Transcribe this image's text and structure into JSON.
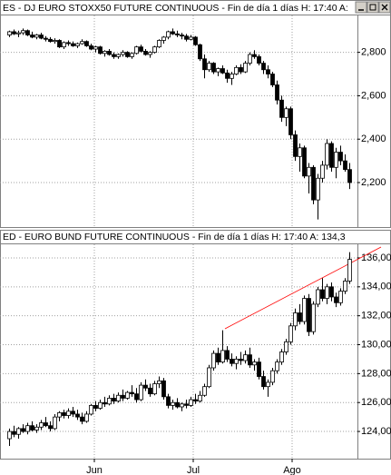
{
  "chart_data": [
    {
      "type": "candlestick",
      "title": "ES - DJ EURO STOXX50 FUTURE CONTINUOUS - Fin de día 1 días  H: 17:40  A:",
      "ylim": [
        1995,
        2970
      ],
      "yticks": [
        {
          "value": 2200,
          "label": "2,200"
        },
        {
          "value": 2400,
          "label": "2,400"
        },
        {
          "value": 2600,
          "label": "2,600"
        },
        {
          "value": 2800,
          "label": "2,800"
        }
      ],
      "xlim": [
        -1,
        76
      ],
      "xticks": [
        18.8,
        40.6,
        62.4
      ],
      "grid": true,
      "up_color": "#ffffff",
      "down_color": "#000000",
      "open": [
        2880,
        2895,
        2885,
        2890,
        2900,
        2880,
        2870,
        2880,
        2865,
        2860,
        2850,
        2855,
        2825,
        2845,
        2840,
        2830,
        2840,
        2850,
        2830,
        2815,
        2825,
        2795,
        2805,
        2790,
        2780,
        2790,
        2800,
        2780,
        2795,
        2825,
        2805,
        2790,
        2800,
        2825,
        2855,
        2870,
        2895,
        2885,
        2880,
        2875,
        2860,
        2870,
        2835,
        2770,
        2720,
        2750,
        2710,
        2725,
        2705,
        2680,
        2700,
        2730,
        2710,
        2750,
        2790,
        2780,
        2750,
        2720,
        2700,
        2650,
        2580,
        2500,
        2540,
        2420,
        2320,
        2360,
        2230,
        2270,
        2120,
        2220,
        2280,
        2380,
        2270,
        2340,
        2300,
        2260
      ],
      "high": [
        2900,
        2905,
        2900,
        2910,
        2905,
        2895,
        2885,
        2890,
        2875,
        2870,
        2865,
        2860,
        2850,
        2855,
        2850,
        2845,
        2860,
        2855,
        2840,
        2830,
        2830,
        2810,
        2815,
        2800,
        2795,
        2810,
        2805,
        2800,
        2830,
        2835,
        2815,
        2805,
        2830,
        2860,
        2875,
        2900,
        2910,
        2900,
        2890,
        2885,
        2880,
        2875,
        2840,
        2790,
        2760,
        2755,
        2730,
        2740,
        2720,
        2710,
        2740,
        2745,
        2760,
        2800,
        2810,
        2790,
        2760,
        2740,
        2710,
        2670,
        2600,
        2550,
        2550,
        2440,
        2380,
        2370,
        2290,
        2280,
        2240,
        2300,
        2400,
        2390,
        2360,
        2370,
        2330,
        2290
      ],
      "low": [
        2870,
        2880,
        2870,
        2880,
        2875,
        2865,
        2860,
        2860,
        2850,
        2845,
        2840,
        2820,
        2815,
        2830,
        2825,
        2820,
        2835,
        2825,
        2810,
        2800,
        2790,
        2780,
        2785,
        2770,
        2770,
        2780,
        2775,
        2770,
        2790,
        2800,
        2785,
        2775,
        2795,
        2820,
        2840,
        2860,
        2880,
        2870,
        2860,
        2850,
        2855,
        2830,
        2760,
        2680,
        2710,
        2700,
        2690,
        2700,
        2660,
        2650,
        2695,
        2700,
        2705,
        2740,
        2770,
        2740,
        2700,
        2680,
        2640,
        2560,
        2480,
        2460,
        2400,
        2300,
        2250,
        2220,
        2150,
        2100,
        2030,
        2200,
        2260,
        2250,
        2220,
        2280,
        2250,
        2170
      ],
      "close": [
        2895,
        2885,
        2890,
        2900,
        2880,
        2870,
        2880,
        2865,
        2860,
        2850,
        2855,
        2825,
        2845,
        2840,
        2830,
        2840,
        2850,
        2830,
        2815,
        2825,
        2795,
        2805,
        2790,
        2780,
        2790,
        2800,
        2780,
        2795,
        2825,
        2805,
        2790,
        2800,
        2825,
        2855,
        2870,
        2895,
        2885,
        2880,
        2875,
        2860,
        2870,
        2835,
        2770,
        2720,
        2750,
        2710,
        2725,
        2705,
        2680,
        2700,
        2730,
        2710,
        2750,
        2790,
        2780,
        2750,
        2720,
        2700,
        2650,
        2580,
        2500,
        2540,
        2420,
        2320,
        2360,
        2230,
        2270,
        2120,
        2220,
        2280,
        2380,
        2270,
        2340,
        2300,
        2260,
        2200
      ]
    },
    {
      "type": "candlestick",
      "title": "ED - EURO BUND FUTURE CONTINUOUS - Fin de día 1 días  H: 17:40  A: 134,3",
      "ylim": [
        122.12,
        136.94
      ],
      "yticks": [
        {
          "value": 124,
          "label": "124,00"
        },
        {
          "value": 126,
          "label": "126,00"
        },
        {
          "value": 128,
          "label": "128,00"
        },
        {
          "value": 130,
          "label": "130,00"
        },
        {
          "value": 132,
          "label": "132,00"
        },
        {
          "value": 134,
          "label": "134,00"
        },
        {
          "value": 136,
          "label": "136,00"
        }
      ],
      "xlim": [
        -1,
        76
      ],
      "xticks": [
        {
          "value": 18.8,
          "label": "Jun"
        },
        {
          "value": 40.6,
          "label": "Jul"
        },
        {
          "value": 62.4,
          "label": "Ago"
        }
      ],
      "grid": true,
      "up_color": "#ffffff",
      "down_color": "#000000",
      "trendline": {
        "x": [
          47.6,
          82
        ],
        "y": [
          131.1,
          136.75
        ],
        "color": "#ff0000"
      },
      "open": [
        123.5,
        124.0,
        123.8,
        124.2,
        124.0,
        124.4,
        124.1,
        124.3,
        124.6,
        124.4,
        124.2,
        125.0,
        125.3,
        125.1,
        125.4,
        125.2,
        125.0,
        124.7,
        125.2,
        125.8,
        125.6,
        126.0,
        125.9,
        126.3,
        126.1,
        126.5,
        126.3,
        126.7,
        126.6,
        126.2,
        127.2,
        127.0,
        126.6,
        127.3,
        127.5,
        126.4,
        125.8,
        126.0,
        125.7,
        125.9,
        125.8,
        126.2,
        126.1,
        126.5,
        127.1,
        128.4,
        129.4,
        128.8,
        129.6,
        129.0,
        128.7,
        129.0,
        128.9,
        129.3,
        128.6,
        128.8,
        127.8,
        127.1,
        127.4,
        128.2,
        128.8,
        129.5,
        130.2,
        131.3,
        132.2,
        131.6,
        133.2,
        130.9,
        132.8,
        133.8,
        133.2,
        134.0,
        133.3,
        132.9,
        133.7,
        134.4
      ],
      "high": [
        124.2,
        124.4,
        124.3,
        124.5,
        124.6,
        124.7,
        124.5,
        124.8,
        125.0,
        124.7,
        125.2,
        125.4,
        125.5,
        125.6,
        125.7,
        125.5,
        125.3,
        125.4,
        125.9,
        126.1,
        126.2,
        126.4,
        126.5,
        126.6,
        126.7,
        126.9,
        126.8,
        127.2,
        127.0,
        127.4,
        127.6,
        127.3,
        127.5,
        127.8,
        127.7,
        126.6,
        126.2,
        126.3,
        126.0,
        126.2,
        126.4,
        126.6,
        126.8,
        127.3,
        128.6,
        129.6,
        129.8,
        131.0,
        129.9,
        129.4,
        129.2,
        129.5,
        129.6,
        129.8,
        129.0,
        129.1,
        128.2,
        127.6,
        128.4,
        129.0,
        129.7,
        130.4,
        131.5,
        132.5,
        132.8,
        133.4,
        133.5,
        133.0,
        134.0,
        134.6,
        134.2,
        134.3,
        133.6,
        133.9,
        134.6,
        136.4
      ],
      "low": [
        123.0,
        123.6,
        123.5,
        123.9,
        123.8,
        124.0,
        123.9,
        124.1,
        124.3,
        124.0,
        124.1,
        124.7,
        124.9,
        124.9,
        125.0,
        124.8,
        124.5,
        124.6,
        125.1,
        125.4,
        125.5,
        125.7,
        125.8,
        125.9,
        126.0,
        126.1,
        126.2,
        126.4,
        126.0,
        126.1,
        126.8,
        126.4,
        126.5,
        127.0,
        126.2,
        125.6,
        125.5,
        125.6,
        125.4,
        125.6,
        125.7,
        125.9,
        126.0,
        126.4,
        127.0,
        128.2,
        128.6,
        128.7,
        128.8,
        128.5,
        128.3,
        128.6,
        128.7,
        128.4,
        128.2,
        127.6,
        126.9,
        126.4,
        127.2,
        128.0,
        128.6,
        129.3,
        130.0,
        131.0,
        131.4,
        131.4,
        130.6,
        130.7,
        132.6,
        133.0,
        132.8,
        133.0,
        132.6,
        132.7,
        133.5,
        134.2
      ],
      "close": [
        124.0,
        123.8,
        124.2,
        124.0,
        124.4,
        124.1,
        124.3,
        124.6,
        124.4,
        124.2,
        125.0,
        125.3,
        125.1,
        125.4,
        125.2,
        125.0,
        124.7,
        125.2,
        125.8,
        125.6,
        126.0,
        125.9,
        126.3,
        126.1,
        126.5,
        126.3,
        126.7,
        126.6,
        126.2,
        127.2,
        127.0,
        126.6,
        127.3,
        127.5,
        126.4,
        125.8,
        126.0,
        125.7,
        125.9,
        125.8,
        126.2,
        126.1,
        126.5,
        127.1,
        128.4,
        129.4,
        128.8,
        129.6,
        129.0,
        128.7,
        129.0,
        128.9,
        129.3,
        128.6,
        128.8,
        127.8,
        127.1,
        127.4,
        128.2,
        128.8,
        129.5,
        130.2,
        131.3,
        132.2,
        131.6,
        133.2,
        130.9,
        132.8,
        133.8,
        133.2,
        134.0,
        133.3,
        132.9,
        133.7,
        134.4,
        135.9
      ]
    }
  ]
}
